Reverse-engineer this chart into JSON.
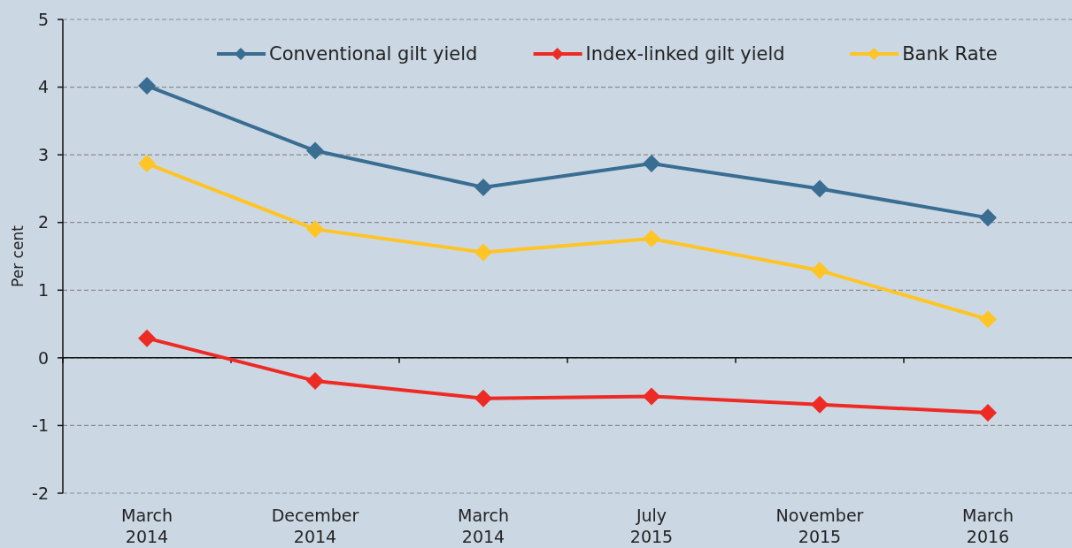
{
  "chart_data": {
    "type": "line",
    "ylabel": "Per cent",
    "categories": [
      "March\n2014",
      "December\n2014",
      "March\n2014",
      "July\n2015",
      "November\n2015",
      "March\n2016"
    ],
    "series": [
      {
        "name": "Conventional gilt yield",
        "color": "#3a6d92",
        "values": [
          4.02,
          3.06,
          2.52,
          2.87,
          2.5,
          2.07
        ]
      },
      {
        "name": "Index-linked gilt yield",
        "color": "#ee2a24",
        "values": [
          0.29,
          -0.34,
          -0.6,
          -0.57,
          -0.69,
          -0.81
        ]
      },
      {
        "name": "Bank Rate",
        "color": "#ffc425",
        "values": [
          2.87,
          1.9,
          1.56,
          1.76,
          1.29,
          0.57
        ]
      }
    ],
    "ylim": [
      -2,
      5
    ],
    "yticks": [
      -2,
      -1,
      0,
      1,
      2,
      3,
      4,
      5
    ],
    "grid": "y",
    "legend": "top right",
    "marker": "diamond",
    "line_style": "solid"
  }
}
